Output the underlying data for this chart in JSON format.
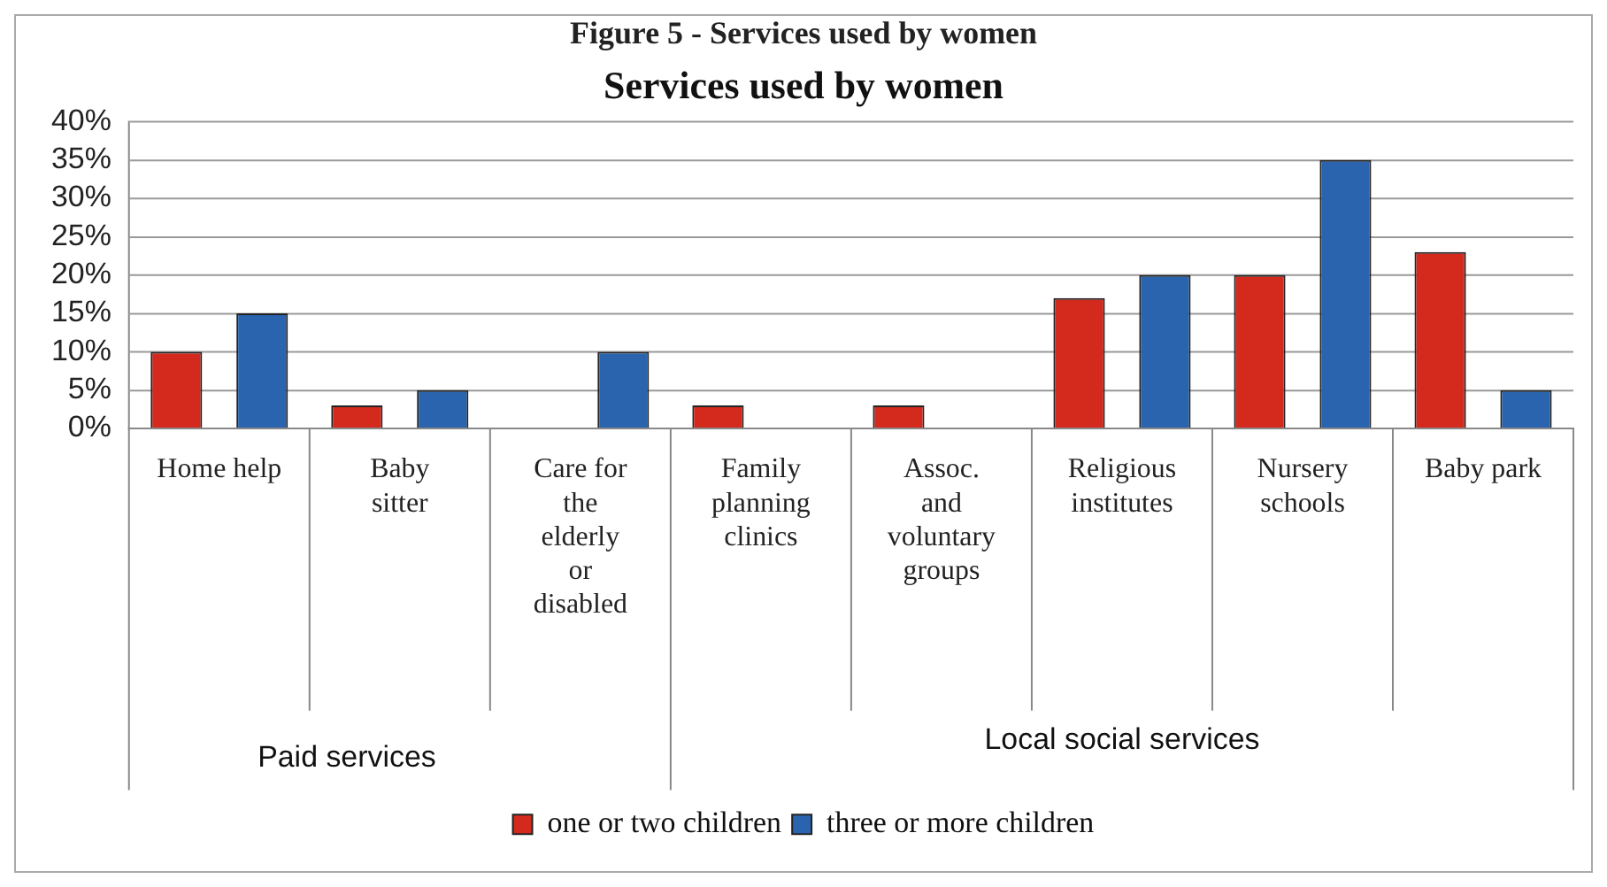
{
  "chart_data": {
    "type": "bar",
    "title": "Figure 5 - Services used by women",
    "subtitle": "Services used by women",
    "categories": [
      "Home help",
      "Baby sitter",
      "Care for the elderly or disabled",
      "Family planning clinics",
      "Assoc. and voluntary groups",
      "Religious institutes",
      "Nursery schools",
      "Baby park"
    ],
    "series": [
      {
        "name": "one or two children",
        "color": "#d42a1e",
        "values": [
          10,
          3,
          null,
          3,
          3,
          17,
          20,
          23
        ]
      },
      {
        "name": "three or more children",
        "color": "#2a64ae",
        "values": [
          15,
          5,
          10,
          null,
          null,
          20,
          35,
          5
        ]
      }
    ],
    "ylim": [
      0,
      40
    ],
    "yticks": [
      {
        "value": 0,
        "label": "0%"
      },
      {
        "value": 5,
        "label": "5%"
      },
      {
        "value": 10,
        "label": "10%"
      },
      {
        "value": 15,
        "label": "15%"
      },
      {
        "value": 20,
        "label": "20%"
      },
      {
        "value": 25,
        "label": "25%"
      },
      {
        "value": 30,
        "label": "30%"
      },
      {
        "value": 35,
        "label": "35%"
      },
      {
        "value": 40,
        "label": "40%"
      }
    ],
    "grid": "y",
    "legend": "bottom",
    "annotations": [
      "Paid services",
      "Local social services"
    ]
  }
}
